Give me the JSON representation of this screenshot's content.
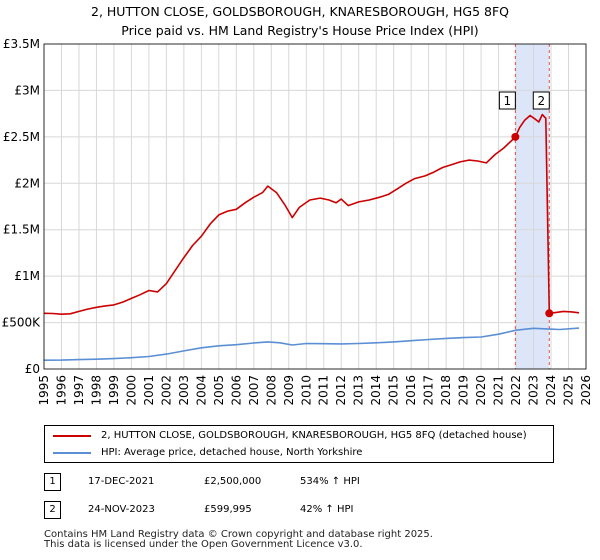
{
  "title_line1": "2, HUTTON CLOSE, GOLDSBOROUGH, KNARESBOROUGH, HG5 8FQ",
  "title_line2": "Price paid vs. HM Land Registry's House Price Index (HPI)",
  "colors": {
    "property": "#cc0000",
    "hpi": "#5b8fd4",
    "band": "#dde5f8",
    "grid": "#d8d8d8",
    "marker_line": "#e05050"
  },
  "chart_data": {
    "type": "line",
    "title": "Price paid vs. HM Land Registry's House Price Index (HPI)",
    "xlabel": "",
    "ylabel": "",
    "xlim": [
      1995.0,
      2026.0
    ],
    "ylim": [
      0,
      3500000
    ],
    "y_ticks": [
      0,
      500000,
      1000000,
      1500000,
      2000000,
      2500000,
      3000000,
      3500000
    ],
    "y_tick_labels": [
      "£0",
      "£500K",
      "£1M",
      "£1.5M",
      "£2M",
      "£2.5M",
      "£3M",
      "£3.5M"
    ],
    "x_ticks": [
      1995,
      1996,
      1997,
      1998,
      1999,
      2000,
      2001,
      2002,
      2003,
      2004,
      2005,
      2006,
      2007,
      2008,
      2009,
      2010,
      2011,
      2012,
      2013,
      2014,
      2015,
      2016,
      2017,
      2018,
      2019,
      2020,
      2021,
      2022,
      2023,
      2024,
      2025,
      2026
    ],
    "x_tick_labels": [
      "1995",
      "1996",
      "1997",
      "1998",
      "1999",
      "2000",
      "2001",
      "2002",
      "2003",
      "2004",
      "2005",
      "2006",
      "2007",
      "2008",
      "2009",
      "2010",
      "2011",
      "2012",
      "2013",
      "2014",
      "2015",
      "2016",
      "2017",
      "2018",
      "2019",
      "2020",
      "2021",
      "2022",
      "2023",
      "2024",
      "2025",
      "2026"
    ],
    "grid": true,
    "shaded_region": [
      2021.96,
      2023.9
    ],
    "series": [
      {
        "name": "2, HUTTON CLOSE, GOLDSBOROUGH, KNARESBOROUGH, HG5 8FQ (detached house)",
        "points": [
          [
            1995.0,
            600000
          ],
          [
            1995.5,
            598000
          ],
          [
            1996.0,
            590000
          ],
          [
            1996.5,
            595000
          ],
          [
            1997.0,
            620000
          ],
          [
            1997.5,
            645000
          ],
          [
            1998.0,
            665000
          ],
          [
            1998.5,
            680000
          ],
          [
            1999.0,
            690000
          ],
          [
            1999.5,
            720000
          ],
          [
            2000.0,
            760000
          ],
          [
            2000.5,
            800000
          ],
          [
            2001.0,
            845000
          ],
          [
            2001.5,
            830000
          ],
          [
            2002.0,
            920000
          ],
          [
            2002.5,
            1060000
          ],
          [
            2003.0,
            1200000
          ],
          [
            2003.5,
            1330000
          ],
          [
            2004.0,
            1430000
          ],
          [
            2004.5,
            1560000
          ],
          [
            2005.0,
            1660000
          ],
          [
            2005.5,
            1700000
          ],
          [
            2006.0,
            1720000
          ],
          [
            2006.5,
            1790000
          ],
          [
            2007.0,
            1850000
          ],
          [
            2007.5,
            1900000
          ],
          [
            2007.8,
            1970000
          ],
          [
            2008.3,
            1900000
          ],
          [
            2008.8,
            1760000
          ],
          [
            2009.2,
            1630000
          ],
          [
            2009.6,
            1740000
          ],
          [
            2010.2,
            1820000
          ],
          [
            2010.8,
            1840000
          ],
          [
            2011.3,
            1820000
          ],
          [
            2011.7,
            1790000
          ],
          [
            2012.0,
            1830000
          ],
          [
            2012.4,
            1760000
          ],
          [
            2013.0,
            1800000
          ],
          [
            2013.6,
            1820000
          ],
          [
            2014.2,
            1850000
          ],
          [
            2014.7,
            1880000
          ],
          [
            2015.2,
            1940000
          ],
          [
            2015.7,
            2000000
          ],
          [
            2016.2,
            2050000
          ],
          [
            2016.8,
            2080000
          ],
          [
            2017.3,
            2120000
          ],
          [
            2017.8,
            2170000
          ],
          [
            2018.3,
            2200000
          ],
          [
            2018.8,
            2230000
          ],
          [
            2019.3,
            2250000
          ],
          [
            2019.8,
            2240000
          ],
          [
            2020.3,
            2220000
          ],
          [
            2020.8,
            2310000
          ],
          [
            2021.3,
            2380000
          ],
          [
            2021.96,
            2500000
          ],
          [
            2022.2,
            2600000
          ],
          [
            2022.5,
            2680000
          ],
          [
            2022.8,
            2730000
          ],
          [
            2023.1,
            2690000
          ],
          [
            2023.3,
            2660000
          ],
          [
            2023.5,
            2740000
          ],
          [
            2023.7,
            2700000
          ],
          [
            2023.9,
            599995
          ],
          [
            2024.3,
            610000
          ],
          [
            2024.7,
            620000
          ],
          [
            2025.2,
            615000
          ],
          [
            2025.6,
            605000
          ]
        ]
      },
      {
        "name": "HPI: Average price, detached house, North Yorkshire",
        "points": [
          [
            1995.0,
            95000
          ],
          [
            1996.0,
            96000
          ],
          [
            1997.0,
            101000
          ],
          [
            1998.0,
            106000
          ],
          [
            1999.0,
            112000
          ],
          [
            2000.0,
            122000
          ],
          [
            2001.0,
            135000
          ],
          [
            2002.0,
            160000
          ],
          [
            2003.0,
            195000
          ],
          [
            2004.0,
            228000
          ],
          [
            2005.0,
            250000
          ],
          [
            2006.0,
            262000
          ],
          [
            2007.0,
            280000
          ],
          [
            2007.8,
            292000
          ],
          [
            2008.5,
            282000
          ],
          [
            2009.2,
            258000
          ],
          [
            2010.0,
            275000
          ],
          [
            2011.0,
            272000
          ],
          [
            2012.0,
            270000
          ],
          [
            2013.0,
            275000
          ],
          [
            2014.0,
            282000
          ],
          [
            2015.0,
            292000
          ],
          [
            2016.0,
            305000
          ],
          [
            2017.0,
            318000
          ],
          [
            2018.0,
            330000
          ],
          [
            2019.0,
            338000
          ],
          [
            2020.0,
            345000
          ],
          [
            2021.0,
            375000
          ],
          [
            2022.0,
            418000
          ],
          [
            2023.0,
            438000
          ],
          [
            2023.9,
            430000
          ],
          [
            2024.5,
            425000
          ],
          [
            2025.6,
            440000
          ]
        ]
      }
    ],
    "annotations": [
      {
        "label": "1",
        "x": 2021.96,
        "y": 2500000
      },
      {
        "label": "2",
        "x": 2023.9,
        "y": 599995
      }
    ]
  },
  "legend": {
    "property_label": "2, HUTTON CLOSE, GOLDSBOROUGH, KNARESBOROUGH, HG5 8FQ (detached house)",
    "hpi_label": "HPI: Average price, detached house, North Yorkshire"
  },
  "transactions": [
    {
      "num": "1",
      "date": "17-DEC-2021",
      "price": "£2,500,000",
      "hpi": "534% ↑ HPI"
    },
    {
      "num": "2",
      "date": "24-NOV-2023",
      "price": "£599,995",
      "hpi": "42% ↑ HPI"
    }
  ],
  "footer_line1": "Contains HM Land Registry data © Crown copyright and database right 2025.",
  "footer_line2": "This data is licensed under the Open Government Licence v3.0."
}
